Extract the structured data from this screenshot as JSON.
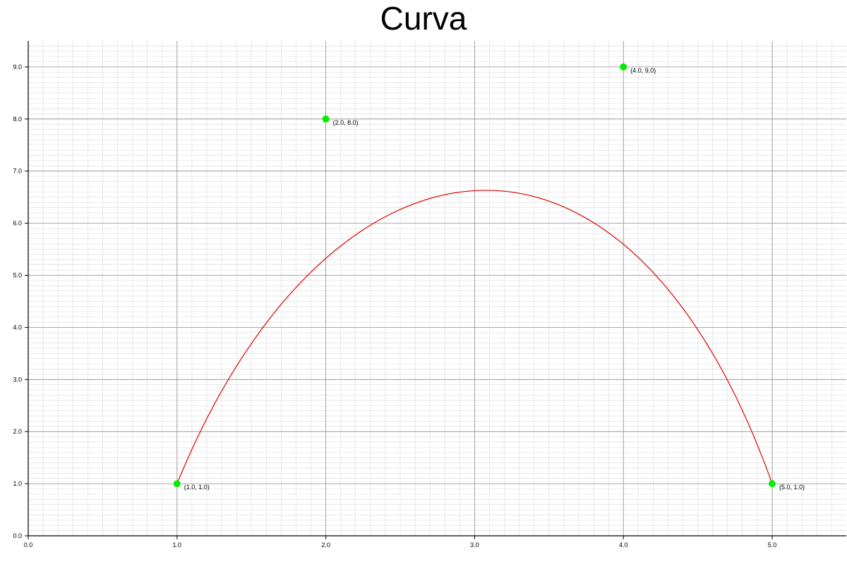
{
  "chart_data": {
    "type": "scatter",
    "title": "Curva",
    "xlabel": "",
    "ylabel": "",
    "xlim": [
      0.0,
      5.5
    ],
    "ylim": [
      0.0,
      9.5
    ],
    "x_ticks": [
      "0.0",
      "1.0",
      "2.0",
      "3.0",
      "4.0",
      "5.0"
    ],
    "y_ticks": [
      "0.0",
      "1.0",
      "2.0",
      "3.0",
      "4.0",
      "5.0",
      "6.0",
      "7.0",
      "8.0",
      "9.0"
    ],
    "grid": true,
    "points": [
      {
        "x": 1.0,
        "y": 1.0,
        "label": "(1.0, 1.0)"
      },
      {
        "x": 2.0,
        "y": 8.0,
        "label": "(2.0, 8.0)"
      },
      {
        "x": 4.0,
        "y": 9.0,
        "label": "(4.0, 9.0)"
      },
      {
        "x": 5.0,
        "y": 1.0,
        "label": "(5.0, 1.0)"
      }
    ],
    "curve": {
      "kind": "bezier",
      "control_points": [
        [
          1.0,
          1.0
        ],
        [
          2.0,
          8.0
        ],
        [
          4.0,
          9.0
        ],
        [
          5.0,
          1.0
        ]
      ],
      "color": "#e00000"
    },
    "point_color": "#00ee00",
    "grid_major_color": "#8c8c8c",
    "grid_minor_color": "#dcdcdc"
  }
}
